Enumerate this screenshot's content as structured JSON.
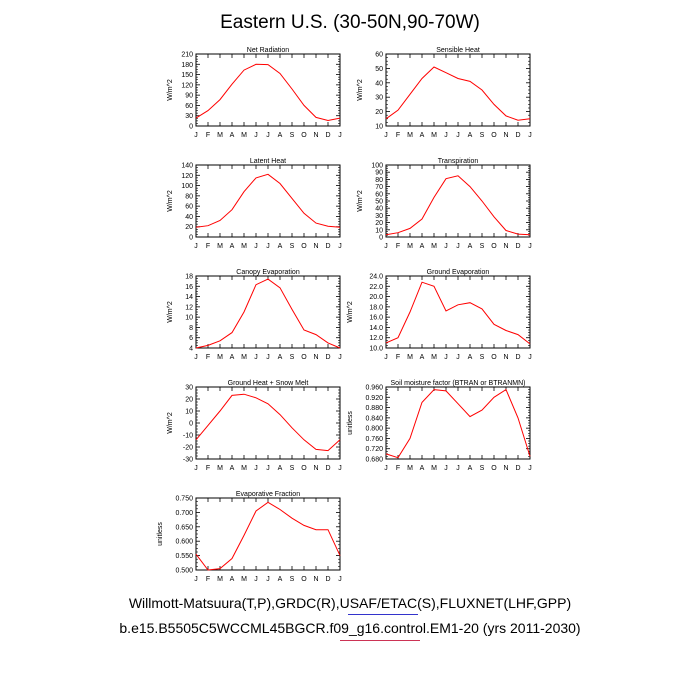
{
  "title": "Eastern U.S. (30-50N,90-70W)",
  "footer": {
    "line1": "Willmott-Matsuura(T,P),GRDC(R),USAF/ETAC(S),FLUXNET(LHF,GPP)",
    "line2": "b.e15.B5505C5WCCML45BGCR.f09_g16.control.EM1-20 (yrs 2011-2030)"
  },
  "colors": {
    "line": "#ff0000",
    "axis": "#000000",
    "underline_blue": "#3333cc",
    "underline_red": "#cc3355"
  },
  "chart_data": [
    {
      "type": "line",
      "title": "Net Radiation",
      "ylabel": "W/m^2",
      "categories": [
        "J",
        "F",
        "M",
        "A",
        "M",
        "J",
        "J",
        "A",
        "S",
        "O",
        "N",
        "D",
        "J"
      ],
      "values": [
        23,
        45,
        77,
        122,
        163,
        180,
        179,
        153,
        108,
        60,
        25,
        16,
        23
      ],
      "ylim": [
        0,
        210
      ],
      "yticks": [
        "0",
        "30",
        "60",
        "90",
        "120",
        "150",
        "180",
        "210"
      ]
    },
    {
      "type": "line",
      "title": "Sensible Heat",
      "ylabel": "W/m^2",
      "categories": [
        "J",
        "F",
        "M",
        "A",
        "M",
        "J",
        "J",
        "A",
        "S",
        "O",
        "N",
        "D",
        "J"
      ],
      "values": [
        15,
        21,
        32,
        43,
        51,
        47,
        43,
        41,
        35,
        25,
        17,
        14,
        15
      ],
      "ylim": [
        10,
        60
      ],
      "yticks": [
        "10",
        "20",
        "30",
        "40",
        "50",
        "60"
      ]
    },
    {
      "type": "line",
      "title": "Latent Heat",
      "ylabel": "W/m^2",
      "categories": [
        "J",
        "F",
        "M",
        "A",
        "M",
        "J",
        "J",
        "A",
        "S",
        "O",
        "N",
        "D",
        "J"
      ],
      "values": [
        19,
        22,
        32,
        53,
        88,
        115,
        122,
        104,
        75,
        46,
        27,
        21,
        19
      ],
      "ylim": [
        0,
        140
      ],
      "yticks": [
        "0",
        "20",
        "40",
        "60",
        "80",
        "100",
        "120",
        "140"
      ]
    },
    {
      "type": "line",
      "title": "Transpiration",
      "ylabel": "W/m^2",
      "categories": [
        "J",
        "F",
        "M",
        "A",
        "M",
        "J",
        "J",
        "A",
        "S",
        "O",
        "N",
        "D",
        "J"
      ],
      "values": [
        3,
        6,
        12,
        25,
        55,
        81,
        85,
        70,
        50,
        28,
        9,
        4,
        3
      ],
      "ylim": [
        0,
        100
      ],
      "yticks": [
        "0",
        "10",
        "20",
        "30",
        "40",
        "50",
        "60",
        "70",
        "80",
        "90",
        "100"
      ]
    },
    {
      "type": "line",
      "title": "Canopy Evaporation",
      "ylabel": "W/m^2",
      "categories": [
        "J",
        "F",
        "M",
        "A",
        "M",
        "J",
        "J",
        "A",
        "S",
        "O",
        "N",
        "D",
        "J"
      ],
      "values": [
        4.0,
        4.5,
        5.4,
        7.0,
        11.0,
        16.3,
        17.4,
        15.7,
        11.5,
        7.5,
        6.6,
        5.0,
        4.0
      ],
      "ylim": [
        4,
        18
      ],
      "yticks": [
        "4",
        "6",
        "8",
        "10",
        "12",
        "14",
        "16",
        "18"
      ]
    },
    {
      "type": "line",
      "title": "Ground Evaporation",
      "ylabel": "W/m^2",
      "categories": [
        "J",
        "F",
        "M",
        "A",
        "M",
        "J",
        "J",
        "A",
        "S",
        "O",
        "N",
        "D",
        "J"
      ],
      "values": [
        11.0,
        12.0,
        17.0,
        22.8,
        22.0,
        17.2,
        18.4,
        18.8,
        17.6,
        14.6,
        13.4,
        12.6,
        10.8
      ],
      "ylim": [
        10,
        24
      ],
      "yticks": [
        "10.0",
        "12.0",
        "14.0",
        "16.0",
        "18.0",
        "20.0",
        "22.0",
        "24.0"
      ]
    },
    {
      "type": "line",
      "title": "Ground Heat + Snow Melt",
      "ylabel": "W/m^2",
      "categories": [
        "J",
        "F",
        "M",
        "A",
        "M",
        "J",
        "J",
        "A",
        "S",
        "O",
        "N",
        "D",
        "J"
      ],
      "values": [
        -14,
        -2,
        10,
        23,
        24,
        21,
        16,
        7,
        -4,
        -14,
        -22,
        -23,
        -14
      ],
      "ylim": [
        -30,
        30
      ],
      "yticks": [
        "-30",
        "-20",
        "-10",
        "0",
        "10",
        "20",
        "30"
      ]
    },
    {
      "type": "line",
      "title": "Soil moisture factor (BTRAN or BTRANMN)",
      "ylabel": "unitless",
      "categories": [
        "J",
        "F",
        "M",
        "A",
        "M",
        "J",
        "J",
        "A",
        "S",
        "O",
        "N",
        "D",
        "J"
      ],
      "values": [
        0.7,
        0.685,
        0.76,
        0.9,
        0.95,
        0.945,
        0.895,
        0.845,
        0.87,
        0.92,
        0.95,
        0.84,
        0.69
      ],
      "ylim": [
        0.68,
        0.96
      ],
      "yticks": [
        "0.680",
        "0.720",
        "0.760",
        "0.800",
        "0.840",
        "0.880",
        "0.920",
        "0.960"
      ]
    },
    {
      "type": "line",
      "title": "Evaporative Fraction",
      "ylabel": "unitless",
      "categories": [
        "J",
        "F",
        "M",
        "A",
        "M",
        "J",
        "J",
        "A",
        "S",
        "O",
        "N",
        "D",
        "J"
      ],
      "values": [
        0.555,
        0.5,
        0.505,
        0.54,
        0.62,
        0.705,
        0.735,
        0.71,
        0.68,
        0.655,
        0.64,
        0.64,
        0.55
      ],
      "ylim": [
        0.5,
        0.75
      ],
      "yticks": [
        "0.500",
        "0.550",
        "0.600",
        "0.650",
        "0.700",
        "0.750"
      ]
    }
  ]
}
